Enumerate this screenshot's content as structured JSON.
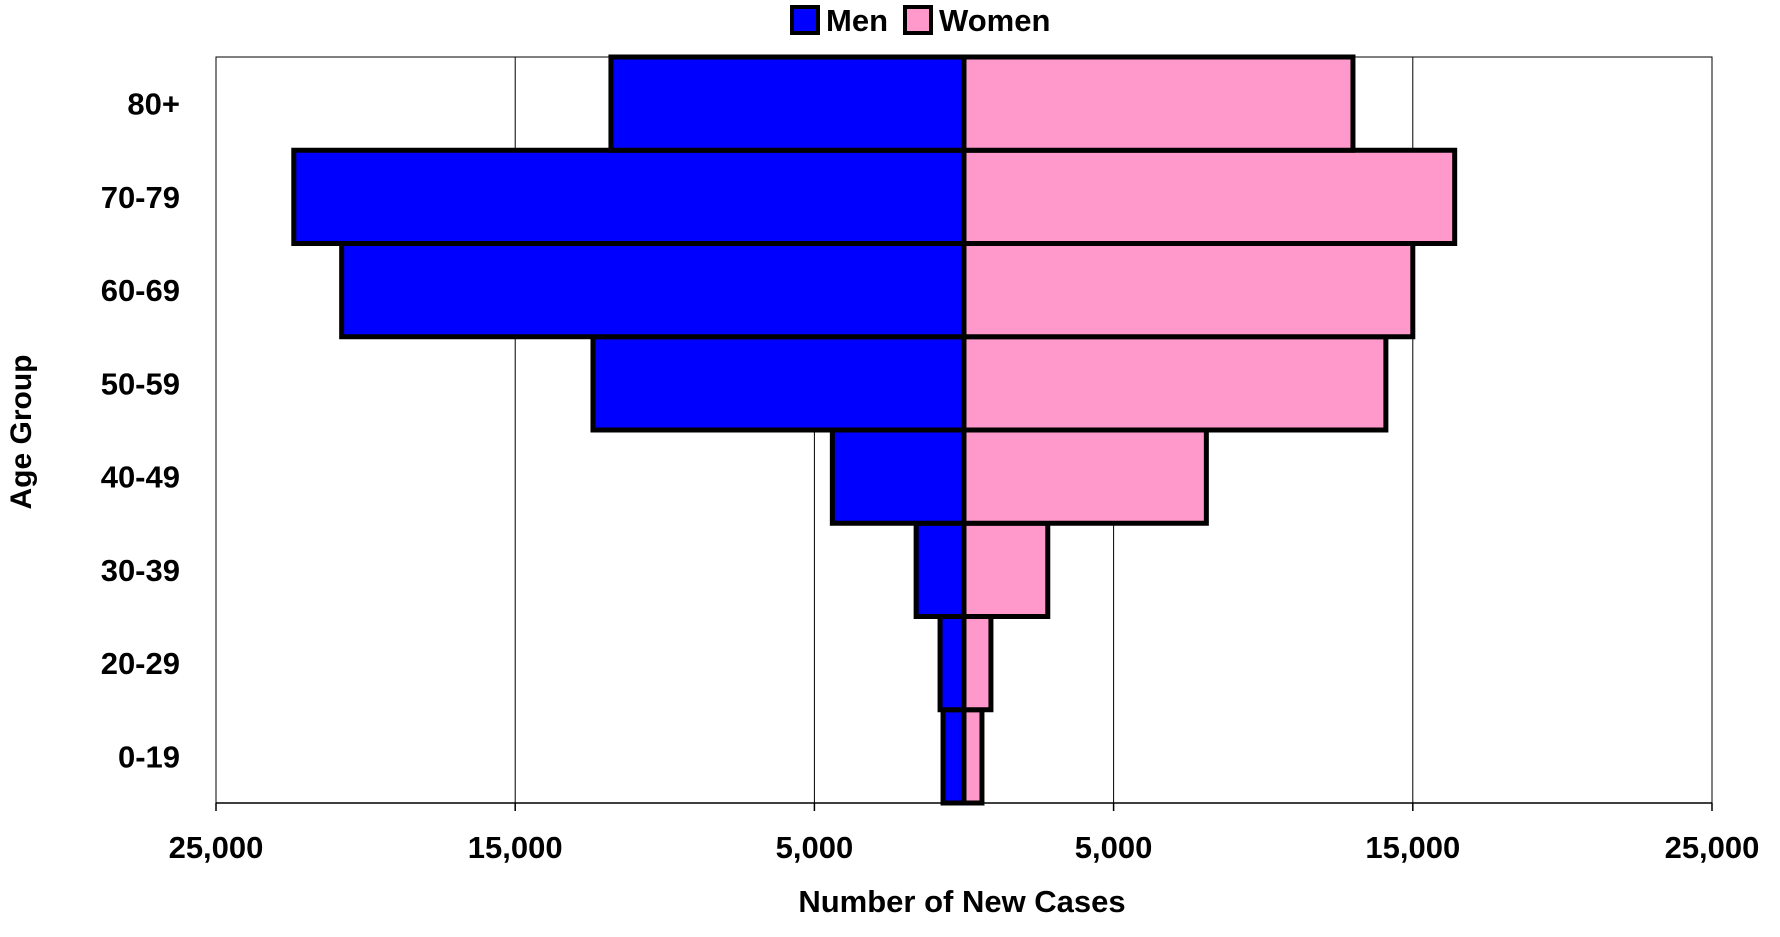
{
  "chart_data": {
    "type": "bar",
    "orientation": "horizontal-pyramid",
    "title": "",
    "xlabel": "Number of New Cases",
    "ylabel": "Age Group",
    "categories": [
      "0-19",
      "20-29",
      "30-39",
      "40-49",
      "50-59",
      "60-69",
      "70-79",
      "80+"
    ],
    "series": [
      {
        "name": "Men",
        "color": "#0000FF",
        "side": "left",
        "values": [
          700,
          800,
          1600,
          4400,
          12400,
          20800,
          22400,
          11800
        ]
      },
      {
        "name": "Women",
        "color": "#FF99CC",
        "side": "right",
        "values": [
          600,
          900,
          2800,
          8100,
          14100,
          15000,
          16400,
          13000
        ]
      }
    ],
    "xlim": [
      -25000,
      25000
    ],
    "x_ticks": [
      -25000,
      -15000,
      -5000,
      5000,
      15000,
      25000
    ],
    "x_tick_labels": [
      "25,000",
      "15,000",
      "5,000",
      "5,000",
      "15,000",
      "25,000"
    ],
    "grid": true,
    "legend_position": "top-center"
  }
}
